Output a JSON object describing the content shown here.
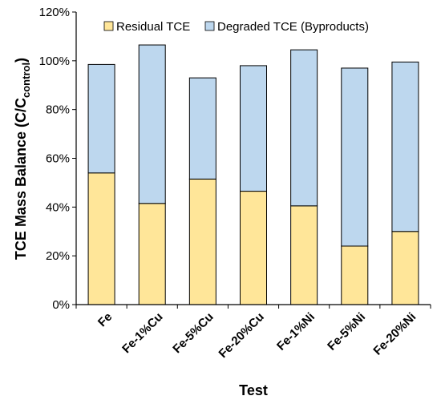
{
  "chart_data": {
    "type": "bar",
    "stacked": true,
    "xlabel": "Test",
    "ylabel": "TCE Mass Balance (C/C",
    "ylabel_subscript": "control",
    "ylabel_close": ")",
    "ylim": [
      0,
      120
    ],
    "y_tick_labels": [
      "0%",
      "20%",
      "40%",
      "60%",
      "80%",
      "100%",
      "120%"
    ],
    "y_ticks": [
      0,
      20,
      40,
      60,
      80,
      100,
      120
    ],
    "grid": false,
    "legend_position": "top",
    "categories": [
      "Fe",
      "Fe-1%Cu",
      "Fe-5%Cu",
      "Fe-20%Cu",
      "Fe-1%Ni",
      "Fe-5%Ni",
      "Fe-20%Ni"
    ],
    "series": [
      {
        "name": "Residual TCE",
        "color": "#FFE699",
        "values": [
          54,
          41.5,
          51.5,
          46.5,
          40.5,
          24,
          30
        ]
      },
      {
        "name": "Degraded TCE (Byproducts)",
        "color": "#BDD7EE",
        "values": [
          44.5,
          65,
          41.5,
          51.5,
          64,
          73,
          69.5
        ]
      }
    ]
  }
}
